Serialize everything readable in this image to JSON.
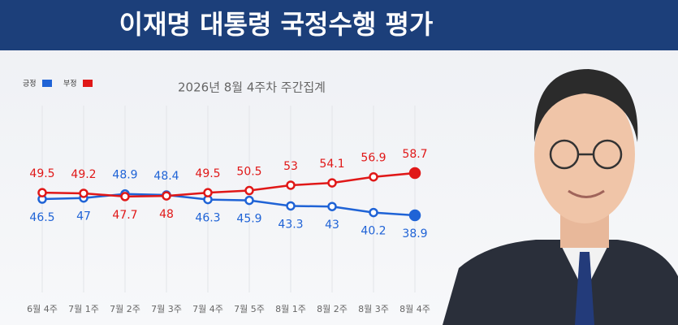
{
  "chart_data": {
    "type": "line",
    "title": "이재명 대통령 국정수행 평가",
    "subtitle": "2026년 8월 4주차 주간집계",
    "categories": [
      "6월 4주",
      "7월 1주",
      "7월 2주",
      "7월 3주",
      "7월 4주",
      "7월 5주",
      "8월 1주",
      "8월 2주",
      "8월 3주",
      "8월 4주"
    ],
    "series": [
      {
        "name": "긍정",
        "color": "#1f63d6",
        "values": [
          46.5,
          47.0,
          48.9,
          48.4,
          46.3,
          45.9,
          43.3,
          43.0,
          40.2,
          38.9
        ]
      },
      {
        "name": "부정",
        "color": "#e01818",
        "values": [
          49.5,
          49.2,
          47.7,
          48.0,
          49.5,
          50.5,
          53.0,
          54.1,
          56.9,
          58.7
        ]
      }
    ]
  }
}
